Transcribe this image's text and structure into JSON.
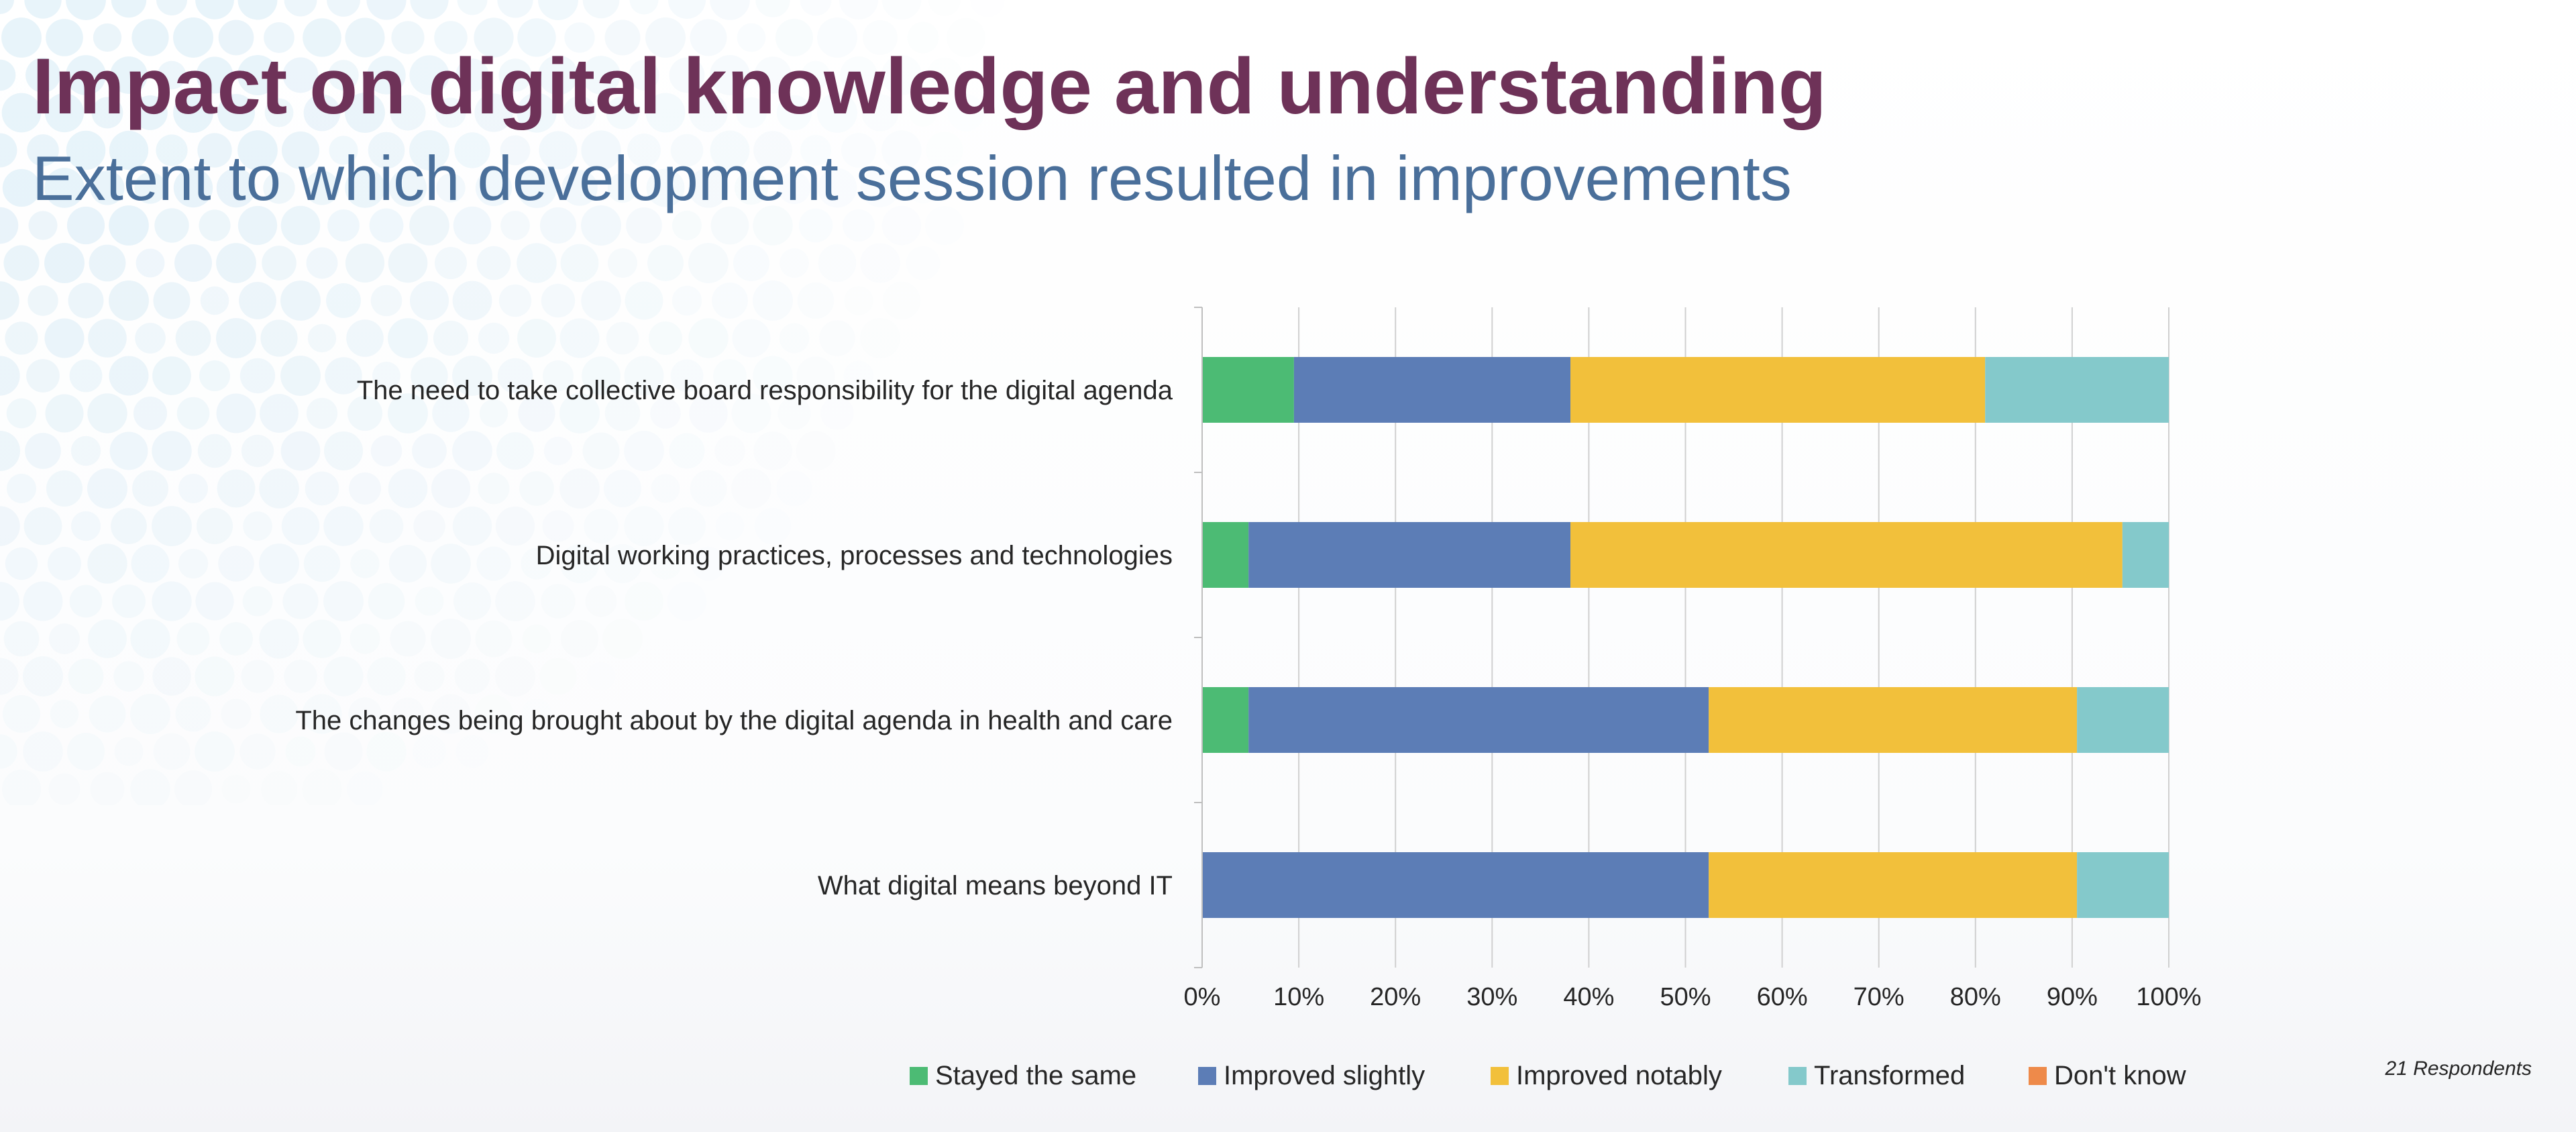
{
  "slide": {
    "title": "Impact on digital knowledge and understanding",
    "subtitle": "Extent to which development session resulted in improvements",
    "respondents": "21 Respondents"
  },
  "colors": {
    "title": "#6e3258",
    "subtitle": "#4a6f9a",
    "decor_dots": "#b9dcef"
  },
  "chart_data": {
    "type": "bar",
    "orientation": "horizontal",
    "stacked": true,
    "percent_stacked": true,
    "categories": [
      "The need to take collective board responsibility for the digital agenda",
      "Digital working practices, processes and technologies",
      "The changes being brought about by the digital agenda in health and care",
      "What digital means beyond IT"
    ],
    "series": [
      {
        "name": "Stayed the same",
        "color": "#4cbb74",
        "values": [
          9.5,
          4.8,
          4.8,
          0
        ]
      },
      {
        "name": "Improved slightly",
        "color": "#5c7db6",
        "values": [
          28.6,
          33.3,
          47.6,
          52.4
        ]
      },
      {
        "name": "Improved notably",
        "color": "#f2c03b",
        "values": [
          42.9,
          57.1,
          38.1,
          38.1
        ]
      },
      {
        "name": "Transformed",
        "color": "#84c9cb",
        "values": [
          19.0,
          4.8,
          9.5,
          9.5
        ]
      },
      {
        "name": "Don't know",
        "color": "#ee8a4a",
        "values": [
          0,
          0,
          0,
          0
        ]
      }
    ],
    "x_ticks": [
      "0%",
      "10%",
      "20%",
      "30%",
      "40%",
      "50%",
      "60%",
      "70%",
      "80%",
      "90%",
      "100%"
    ],
    "xlim": [
      0,
      100
    ],
    "grid": true,
    "legend": "bottom"
  }
}
